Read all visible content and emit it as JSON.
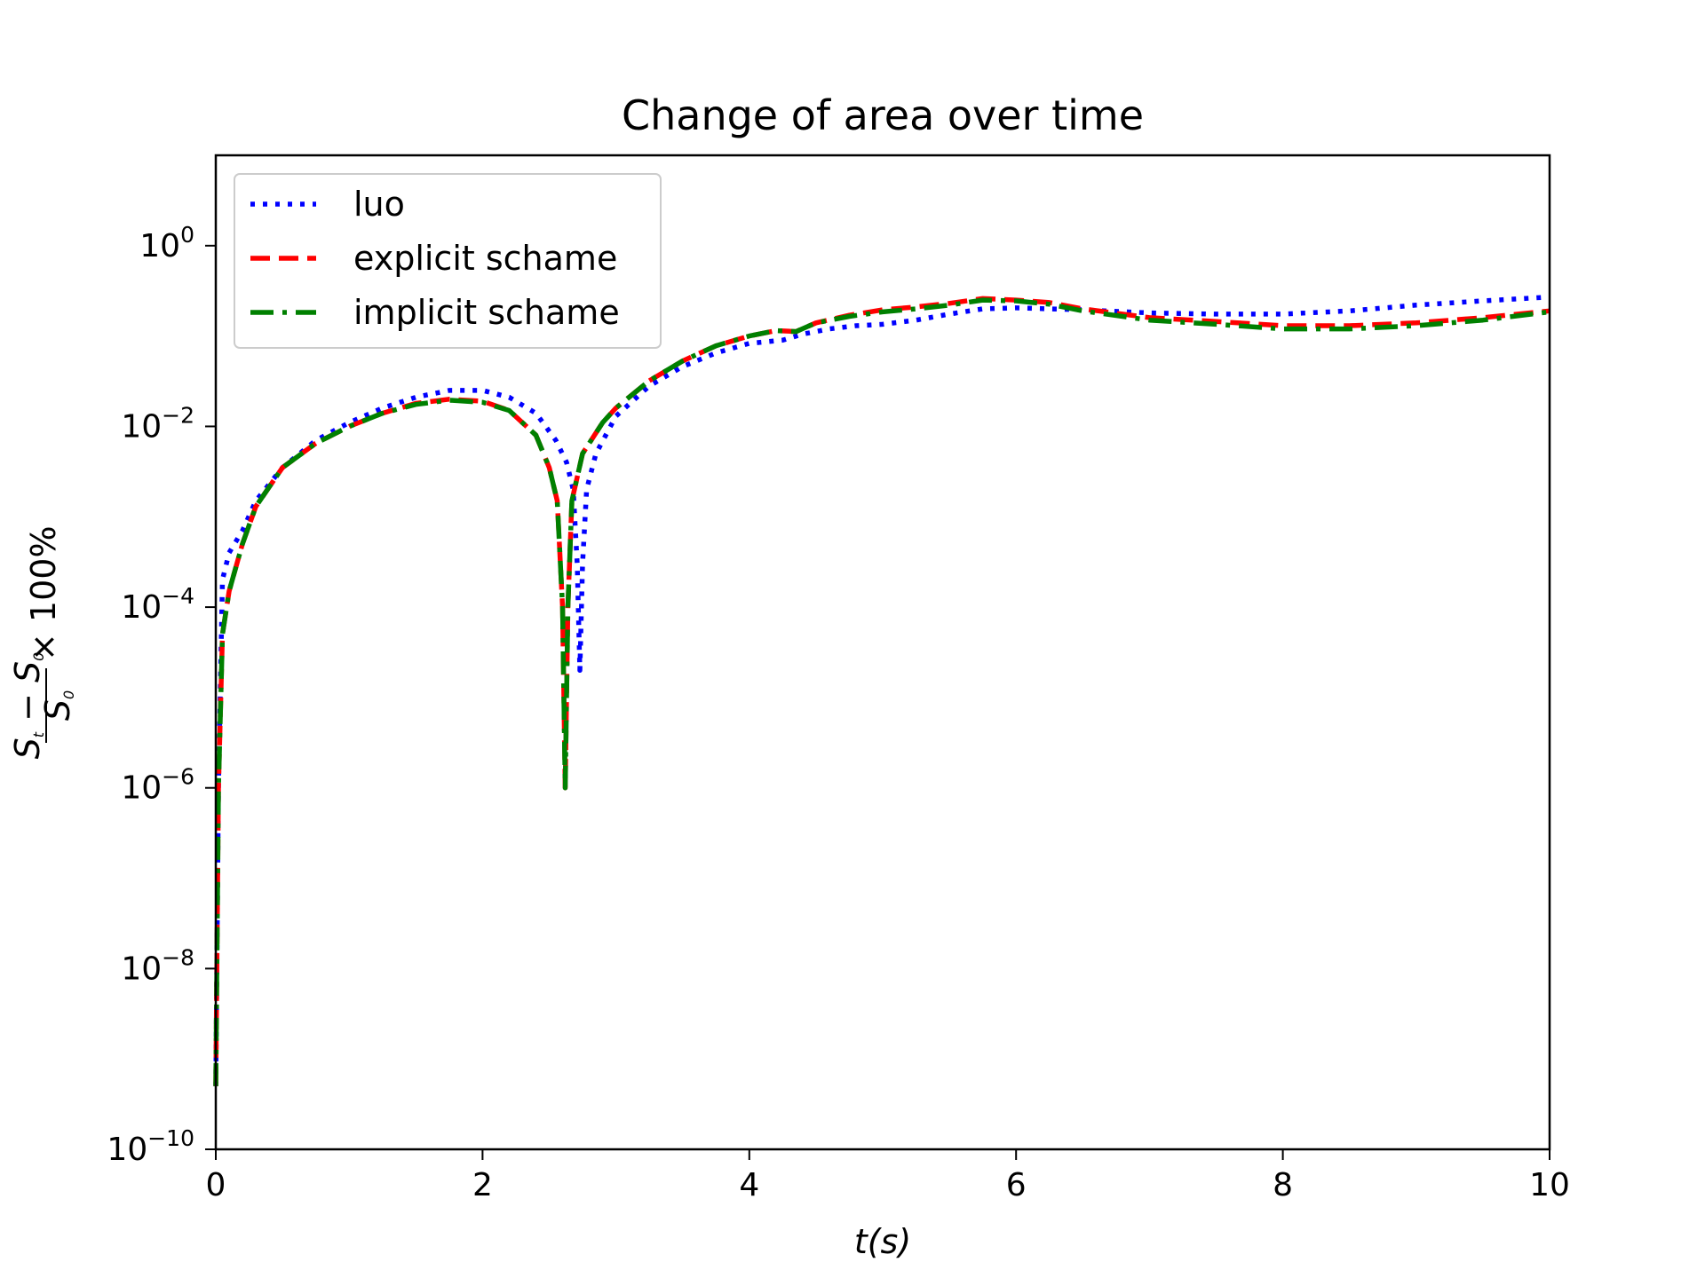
{
  "chart_data": {
    "type": "line",
    "title": "Change of area over time",
    "xlabel": "t(s)",
    "ylabel": "(S_t − S_0) / S_0 × 100%",
    "xscale": "linear",
    "yscale": "log",
    "xlim": [
      0,
      10
    ],
    "ylim": [
      1e-10,
      10
    ],
    "x_ticks": [
      0,
      2,
      4,
      6,
      8,
      10
    ],
    "x_tick_labels": [
      "0",
      "2",
      "4",
      "6",
      "8",
      "10"
    ],
    "y_ticks": [
      1e-10,
      1e-08,
      1e-06,
      0.0001,
      0.01,
      1
    ],
    "y_tick_base": "10",
    "y_tick_exponents": [
      "−10",
      "−8",
      "−6",
      "−4",
      "−2",
      "0"
    ],
    "grid": false,
    "legend_position": "top-left",
    "series": [
      {
        "name": "luo",
        "color": "#0000ff",
        "dash": "dotted",
        "points": [
          [
            0,
            5e-10
          ],
          [
            0.02,
            1e-06
          ],
          [
            0.05,
            0.0002
          ],
          [
            0.1,
            0.0004
          ],
          [
            0.2,
            0.0007
          ],
          [
            0.3,
            0.0015
          ],
          [
            0.5,
            0.0035
          ],
          [
            0.75,
            0.007
          ],
          [
            1.0,
            0.011
          ],
          [
            1.25,
            0.016
          ],
          [
            1.5,
            0.021
          ],
          [
            1.75,
            0.025
          ],
          [
            2.0,
            0.025
          ],
          [
            2.2,
            0.021
          ],
          [
            2.4,
            0.014
          ],
          [
            2.55,
            0.007
          ],
          [
            2.63,
            0.004
          ],
          [
            2.68,
            0.002
          ],
          [
            2.71,
            0.0003
          ],
          [
            2.73,
            2e-05
          ],
          [
            2.75,
            0.0003
          ],
          [
            2.78,
            0.002
          ],
          [
            2.85,
            0.005
          ],
          [
            3.0,
            0.013
          ],
          [
            3.25,
            0.028
          ],
          [
            3.5,
            0.046
          ],
          [
            3.75,
            0.065
          ],
          [
            4.0,
            0.083
          ],
          [
            4.25,
            0.09
          ],
          [
            4.4,
            0.105
          ],
          [
            4.6,
            0.12
          ],
          [
            4.8,
            0.13
          ],
          [
            5.0,
            0.135
          ],
          [
            5.25,
            0.15
          ],
          [
            5.5,
            0.175
          ],
          [
            5.75,
            0.2
          ],
          [
            6.0,
            0.205
          ],
          [
            6.25,
            0.2
          ],
          [
            6.5,
            0.195
          ],
          [
            7.0,
            0.18
          ],
          [
            7.5,
            0.175
          ],
          [
            8.0,
            0.175
          ],
          [
            8.5,
            0.19
          ],
          [
            9.0,
            0.22
          ],
          [
            9.5,
            0.245
          ],
          [
            10.0,
            0.27
          ]
        ]
      },
      {
        "name": "explicit schame",
        "color": "#ff0000",
        "dash": "dashed",
        "points": [
          [
            0,
            5e-10
          ],
          [
            0.02,
            1e-06
          ],
          [
            0.05,
            5e-05
          ],
          [
            0.1,
            0.00015
          ],
          [
            0.2,
            0.0005
          ],
          [
            0.3,
            0.0013
          ],
          [
            0.5,
            0.0035
          ],
          [
            0.75,
            0.0065
          ],
          [
            1.0,
            0.01
          ],
          [
            1.25,
            0.014
          ],
          [
            1.5,
            0.018
          ],
          [
            1.75,
            0.02
          ],
          [
            2.0,
            0.019
          ],
          [
            2.2,
            0.015
          ],
          [
            2.4,
            0.008
          ],
          [
            2.5,
            0.0035
          ],
          [
            2.56,
            0.0015
          ],
          [
            2.6,
            0.0001
          ],
          [
            2.62,
            1e-06
          ],
          [
            2.64,
            0.0001
          ],
          [
            2.67,
            0.0015
          ],
          [
            2.75,
            0.005
          ],
          [
            2.9,
            0.011
          ],
          [
            3.0,
            0.016
          ],
          [
            3.25,
            0.032
          ],
          [
            3.5,
            0.053
          ],
          [
            3.75,
            0.078
          ],
          [
            4.0,
            0.1
          ],
          [
            4.2,
            0.115
          ],
          [
            4.35,
            0.112
          ],
          [
            4.5,
            0.14
          ],
          [
            4.75,
            0.17
          ],
          [
            5.0,
            0.195
          ],
          [
            5.25,
            0.21
          ],
          [
            5.5,
            0.23
          ],
          [
            5.75,
            0.26
          ],
          [
            6.0,
            0.25
          ],
          [
            6.25,
            0.235
          ],
          [
            6.5,
            0.2
          ],
          [
            7.0,
            0.16
          ],
          [
            7.5,
            0.145
          ],
          [
            8.0,
            0.13
          ],
          [
            8.5,
            0.13
          ],
          [
            9.0,
            0.14
          ],
          [
            9.5,
            0.16
          ],
          [
            10.0,
            0.19
          ]
        ]
      },
      {
        "name": "implicit schame",
        "color": "#008000",
        "dash": "dashdot",
        "points": [
          [
            0,
            5e-10
          ],
          [
            0.02,
            1e-06
          ],
          [
            0.05,
            5e-05
          ],
          [
            0.1,
            0.00015
          ],
          [
            0.2,
            0.0005
          ],
          [
            0.3,
            0.0013
          ],
          [
            0.5,
            0.0035
          ],
          [
            0.75,
            0.0065
          ],
          [
            1.0,
            0.01
          ],
          [
            1.25,
            0.014
          ],
          [
            1.5,
            0.0175
          ],
          [
            1.75,
            0.0195
          ],
          [
            2.0,
            0.0185
          ],
          [
            2.2,
            0.015
          ],
          [
            2.4,
            0.008
          ],
          [
            2.5,
            0.0035
          ],
          [
            2.56,
            0.0015
          ],
          [
            2.6,
            0.0001
          ],
          [
            2.62,
            1e-06
          ],
          [
            2.64,
            0.0001
          ],
          [
            2.67,
            0.0015
          ],
          [
            2.75,
            0.005
          ],
          [
            2.9,
            0.011
          ],
          [
            3.0,
            0.016
          ],
          [
            3.25,
            0.032
          ],
          [
            3.5,
            0.053
          ],
          [
            3.75,
            0.078
          ],
          [
            4.0,
            0.1
          ],
          [
            4.2,
            0.115
          ],
          [
            4.35,
            0.112
          ],
          [
            4.5,
            0.14
          ],
          [
            4.75,
            0.165
          ],
          [
            5.0,
            0.185
          ],
          [
            5.25,
            0.2
          ],
          [
            5.5,
            0.22
          ],
          [
            5.75,
            0.25
          ],
          [
            6.0,
            0.245
          ],
          [
            6.25,
            0.225
          ],
          [
            6.5,
            0.19
          ],
          [
            7.0,
            0.15
          ],
          [
            7.5,
            0.135
          ],
          [
            8.0,
            0.12
          ],
          [
            8.5,
            0.12
          ],
          [
            9.0,
            0.13
          ],
          [
            9.5,
            0.15
          ],
          [
            10.0,
            0.185
          ]
        ]
      }
    ]
  }
}
